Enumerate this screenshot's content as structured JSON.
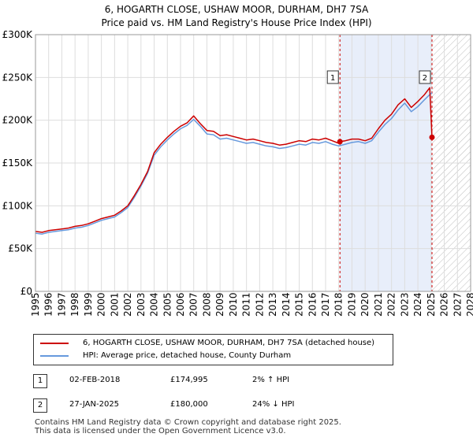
{
  "chart_data": {
    "type": "line",
    "title": "6, HOGARTH CLOSE, USHAW MOOR, DURHAM, DH7 7SA",
    "subtitle": "Price paid vs. HM Land Registry's House Price Index (HPI)",
    "xlim": [
      1995,
      2028
    ],
    "ylim": [
      0,
      300000
    ],
    "x_ticks": [
      "1995",
      "1996",
      "1997",
      "1998",
      "1999",
      "2000",
      "2001",
      "2002",
      "2003",
      "2004",
      "2005",
      "2006",
      "2007",
      "2008",
      "2009",
      "2010",
      "2011",
      "2012",
      "2013",
      "2014",
      "2015",
      "2016",
      "2017",
      "2018",
      "2019",
      "2020",
      "2021",
      "2022",
      "2023",
      "2024",
      "2025",
      "2026",
      "2027",
      "2028"
    ],
    "y_ticks": [
      {
        "value": 0,
        "label": "£0"
      },
      {
        "value": 50000,
        "label": "£50K"
      },
      {
        "value": 100000,
        "label": "£100K"
      },
      {
        "value": 150000,
        "label": "£150K"
      },
      {
        "value": 200000,
        "label": "£200K"
      },
      {
        "value": 250000,
        "label": "£250K"
      },
      {
        "value": 300000,
        "label": "£300K"
      }
    ],
    "shaded_period": [
      2018.09,
      2025.07
    ],
    "future_hatch_from": 2025.07,
    "series": [
      {
        "name": "6, HOGARTH CLOSE, USHAW MOOR, DURHAM, DH7 7SA (detached house)",
        "color": "#cc0000",
        "x": [
          1995.0,
          1995.5,
          1996.0,
          1996.5,
          1997.0,
          1997.5,
          1998.0,
          1998.5,
          1999.0,
          1999.5,
          2000.0,
          2000.5,
          2001.0,
          2001.5,
          2002.0,
          2002.5,
          2003.0,
          2003.5,
          2004.0,
          2004.5,
          2005.0,
          2005.5,
          2006.0,
          2006.5,
          2007.0,
          2007.5,
          2008.0,
          2008.5,
          2009.0,
          2009.5,
          2010.0,
          2010.5,
          2011.0,
          2011.5,
          2012.0,
          2012.5,
          2013.0,
          2013.5,
          2014.0,
          2014.5,
          2015.0,
          2015.5,
          2016.0,
          2016.5,
          2017.0,
          2017.5,
          2018.0,
          2018.09,
          2018.5,
          2019.0,
          2019.5,
          2020.0,
          2020.5,
          2021.0,
          2021.5,
          2022.0,
          2022.5,
          2023.0,
          2023.5,
          2024.0,
          2024.5,
          2024.9,
          2025.07
        ],
        "values": [
          70000,
          69000,
          71000,
          72000,
          73000,
          74000,
          76000,
          77000,
          79000,
          82000,
          85000,
          87000,
          89000,
          94000,
          100000,
          112000,
          125000,
          140000,
          162000,
          172000,
          180000,
          187000,
          193000,
          197000,
          205000,
          196000,
          188000,
          187000,
          182000,
          183000,
          181000,
          179000,
          177000,
          178000,
          176000,
          174000,
          173000,
          171000,
          172000,
          174000,
          176000,
          175000,
          178000,
          177000,
          179000,
          176000,
          173000,
          174995,
          176000,
          178000,
          178000,
          176000,
          179000,
          190000,
          200000,
          207000,
          218000,
          225000,
          215000,
          222000,
          230000,
          238000,
          180000
        ]
      },
      {
        "name": "HPI: Average price, detached house, County Durham",
        "color": "#6699dd",
        "x": [
          1995.0,
          1995.5,
          1996.0,
          1996.5,
          1997.0,
          1997.5,
          1998.0,
          1998.5,
          1999.0,
          1999.5,
          2000.0,
          2000.5,
          2001.0,
          2001.5,
          2002.0,
          2002.5,
          2003.0,
          2003.5,
          2004.0,
          2004.5,
          2005.0,
          2005.5,
          2006.0,
          2006.5,
          2007.0,
          2007.5,
          2008.0,
          2008.5,
          2009.0,
          2009.5,
          2010.0,
          2010.5,
          2011.0,
          2011.5,
          2012.0,
          2012.5,
          2013.0,
          2013.5,
          2014.0,
          2014.5,
          2015.0,
          2015.5,
          2016.0,
          2016.5,
          2017.0,
          2017.5,
          2018.0,
          2018.5,
          2019.0,
          2019.5,
          2020.0,
          2020.5,
          2021.0,
          2021.5,
          2022.0,
          2022.5,
          2023.0,
          2023.5,
          2024.0,
          2024.5,
          2024.9,
          2025.07
        ],
        "values": [
          68000,
          67000,
          69000,
          70000,
          71000,
          72000,
          74000,
          75000,
          77000,
          80000,
          83000,
          85000,
          87000,
          92000,
          98000,
          110000,
          123000,
          138000,
          159000,
          169000,
          177000,
          184000,
          190000,
          194000,
          201000,
          193000,
          184000,
          183000,
          178000,
          179000,
          177000,
          175000,
          173000,
          174000,
          172000,
          170000,
          169000,
          167000,
          168000,
          170000,
          172000,
          171000,
          174000,
          173000,
          175000,
          172000,
          170000,
          172000,
          174000,
          175000,
          173000,
          176000,
          186000,
          195000,
          202000,
          212000,
          220000,
          210000,
          216000,
          224000,
          230000,
          232000
        ]
      }
    ],
    "annotations": [
      {
        "label": "1",
        "x": 2018.09,
        "value": 174995
      },
      {
        "label": "2",
        "x": 2025.07,
        "value": 180000
      }
    ]
  },
  "legend": {
    "property_label": "6, HOGARTH CLOSE, USHAW MOOR, DURHAM, DH7 7SA (detached house)",
    "hpi_label": "HPI: Average price, detached house, County Durham"
  },
  "sales": [
    {
      "badge": "1",
      "date": "02-FEB-2018",
      "price": "£174,995",
      "hpi": "2% ↑ HPI"
    },
    {
      "badge": "2",
      "date": "27-JAN-2025",
      "price": "£180,000",
      "hpi": "24% ↓ HPI"
    }
  ],
  "footer": {
    "line1": "Contains HM Land Registry data © Crown copyright and database right 2025.",
    "line2": "This data is licensed under the Open Government Licence v3.0."
  }
}
